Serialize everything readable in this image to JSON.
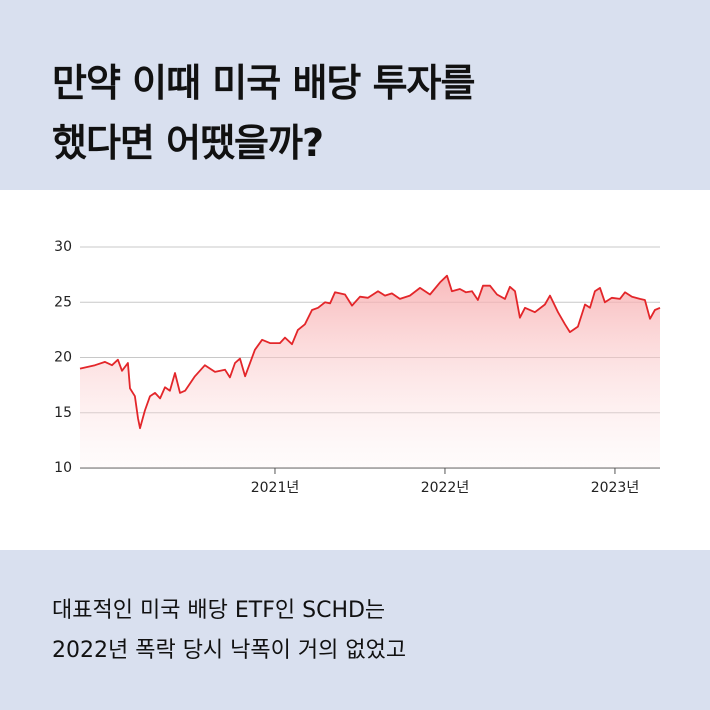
{
  "header": {
    "title_lines": [
      "만약 이때 미국 배당 투자를",
      "했다면 어땠을까?"
    ]
  },
  "chart_data": {
    "type": "line",
    "x": [
      2019.853,
      2019.941,
      2020.0,
      2020.041,
      2020.076,
      2020.1,
      2020.135,
      2020.147,
      2020.176,
      2020.194,
      2020.206,
      2020.235,
      2020.265,
      2020.294,
      2020.324,
      2020.353,
      2020.382,
      2020.412,
      2020.441,
      2020.471,
      2020.529,
      2020.588,
      2020.647,
      2020.706,
      2020.735,
      2020.765,
      2020.794,
      2020.824,
      2020.882,
      2020.924,
      2020.971,
      2021.029,
      2021.059,
      2021.1,
      2021.135,
      2021.176,
      2021.218,
      2021.253,
      2021.294,
      2021.324,
      2021.353,
      2021.412,
      2021.453,
      2021.5,
      2021.547,
      2021.606,
      2021.647,
      2021.688,
      2021.735,
      2021.794,
      2021.853,
      2021.912,
      2021.971,
      2022.012,
      2022.041,
      2022.088,
      2022.124,
      2022.159,
      2022.194,
      2022.224,
      2022.265,
      2022.306,
      2022.353,
      2022.382,
      2022.412,
      2022.441,
      2022.471,
      2022.529,
      2022.588,
      2022.618,
      2022.665,
      2022.706,
      2022.735,
      2022.782,
      2022.824,
      2022.853,
      2022.882,
      2022.912,
      2022.941,
      2022.982,
      2023.029,
      2023.059,
      2023.1,
      2023.147,
      2023.176,
      2023.206,
      2023.235,
      2023.265
    ],
    "values": [
      19.0,
      19.3,
      19.6,
      19.3,
      19.8,
      18.8,
      19.5,
      17.2,
      16.5,
      14.5,
      13.6,
      15.2,
      16.5,
      16.8,
      16.3,
      17.3,
      17.0,
      18.6,
      16.8,
      17.0,
      18.3,
      19.3,
      18.7,
      18.9,
      18.2,
      19.5,
      19.9,
      18.3,
      20.7,
      21.6,
      21.3,
      21.3,
      21.8,
      21.2,
      22.5,
      23.0,
      24.3,
      24.5,
      25.0,
      24.9,
      25.9,
      25.7,
      24.7,
      25.5,
      25.4,
      26.0,
      25.6,
      25.8,
      25.3,
      25.6,
      26.3,
      25.7,
      26.8,
      27.4,
      26.0,
      26.2,
      25.9,
      26.0,
      25.2,
      26.5,
      26.5,
      25.7,
      25.3,
      26.4,
      26.0,
      23.6,
      24.5,
      24.1,
      24.8,
      25.6,
      24.1,
      23.0,
      22.3,
      22.8,
      24.8,
      24.5,
      26.0,
      26.3,
      25.0,
      25.4,
      25.3,
      25.9,
      25.5,
      25.3,
      25.2,
      23.5,
      24.3,
      24.5
    ],
    "color": "#e3262a",
    "xlim": [
      2019.853,
      2023.265
    ],
    "xticks": [
      {
        "value": 2021,
        "label": "2021년"
      },
      {
        "value": 2022,
        "label": "2022년"
      },
      {
        "value": 2023,
        "label": "2023년"
      }
    ],
    "ylim": [
      10,
      30
    ],
    "yticks": [
      10,
      15,
      20,
      25,
      30
    ],
    "grid": true
  },
  "footer": {
    "lines": [
      "대표적인 미국 배당 ETF인 SCHD는",
      "2022년 폭락 당시 낙폭이 거의 없었고"
    ]
  }
}
